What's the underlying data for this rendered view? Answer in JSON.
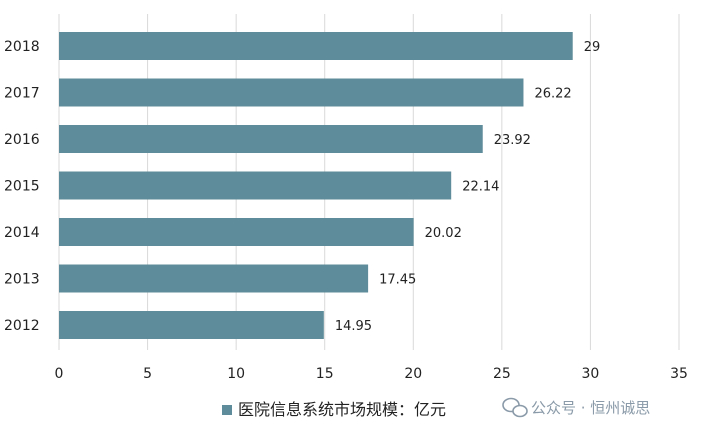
{
  "chart_data": {
    "type": "bar",
    "orientation": "horizontal",
    "categories": [
      "2018",
      "2017",
      "2016",
      "2015",
      "2014",
      "2013",
      "2012"
    ],
    "series": [
      {
        "name": "医院信息系统市场规模：亿元",
        "values": [
          29,
          26.22,
          23.92,
          22.14,
          20.02,
          17.45,
          14.95
        ],
        "data_labels": [
          "29",
          "26.22",
          "23.92",
          "22.14",
          "20.02",
          "17.45",
          "14.95"
        ]
      }
    ],
    "x_ticks": [
      "0",
      "5",
      "10",
      "15",
      "20",
      "25",
      "30",
      "35"
    ],
    "xlim": [
      0,
      35
    ],
    "grid": "vertical",
    "legend_position": "bottom",
    "colors": {
      "bar": "#5e8c9a",
      "grid": "#d9d9d9",
      "legend_marker": "#5e8c9a"
    }
  },
  "watermark": {
    "source_text": "公众号 · 恒州诚思",
    "icon": "wechat-icon"
  }
}
